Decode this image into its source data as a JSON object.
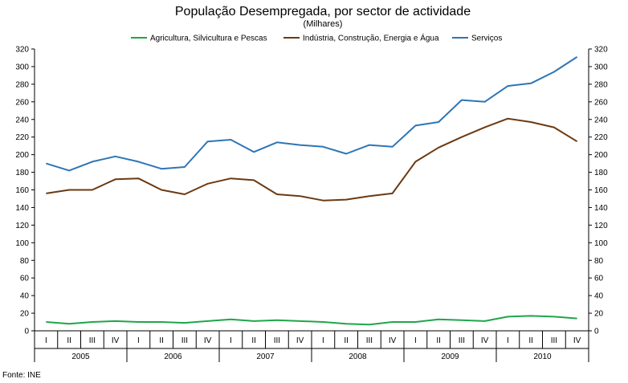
{
  "chart_data": {
    "type": "line",
    "title": "População Desempregada, por sector de actividade",
    "subtitle": "(Milhares)",
    "source": "Fonte: INE",
    "ylim": [
      0,
      320
    ],
    "yticks": [
      0,
      20,
      40,
      60,
      80,
      100,
      120,
      140,
      160,
      180,
      200,
      220,
      240,
      260,
      280,
      300,
      320
    ],
    "legend_position": "top",
    "quarters": [
      "I",
      "II",
      "III",
      "IV",
      "I",
      "II",
      "III",
      "IV",
      "I",
      "II",
      "III",
      "IV",
      "I",
      "II",
      "III",
      "IV",
      "I",
      "II",
      "III",
      "IV",
      "I",
      "II",
      "III",
      "IV"
    ],
    "years": [
      "2005",
      "2006",
      "2007",
      "2008",
      "2009",
      "2010"
    ],
    "series": [
      {
        "name": "Agricultura, Silvicultura e Pescas",
        "color": "#1fa64a",
        "values": [
          10,
          8,
          10,
          11,
          10,
          10,
          9,
          11,
          13,
          11,
          12,
          11,
          10,
          8,
          7,
          10,
          10,
          13,
          12,
          11,
          16,
          17,
          16,
          14
        ]
      },
      {
        "name": "Indústria, Construção, Energia e Água",
        "color": "#6b3a12",
        "values": [
          156,
          160,
          160,
          172,
          173,
          160,
          155,
          167,
          173,
          171,
          155,
          153,
          148,
          149,
          153,
          156,
          192,
          208,
          220,
          231,
          241,
          237,
          231,
          215
        ]
      },
      {
        "name": "Serviços",
        "color": "#2e75b6",
        "values": [
          190,
          182,
          192,
          198,
          192,
          184,
          186,
          215,
          217,
          203,
          214,
          211,
          209,
          201,
          211,
          209,
          233,
          237,
          262,
          260,
          278,
          281,
          294,
          311
        ]
      }
    ]
  }
}
